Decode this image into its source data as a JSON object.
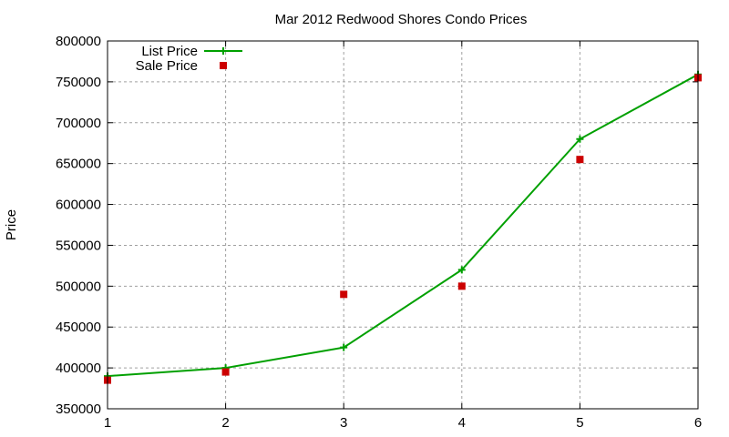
{
  "chart_data": {
    "type": "line",
    "title": "Mar 2012 Redwood Shores Condo Prices",
    "xlabel": "",
    "ylabel": "Price",
    "x": [
      1,
      2,
      3,
      4,
      5,
      6
    ],
    "xlim": [
      1,
      6
    ],
    "ylim": [
      350000,
      800000
    ],
    "xticks": [
      "1",
      "2",
      "3",
      "4",
      "5",
      "6"
    ],
    "yticks": [
      "350000",
      "400000",
      "450000",
      "500000",
      "550000",
      "600000",
      "650000",
      "700000",
      "750000",
      "800000"
    ],
    "grid": true,
    "legend_position": "top-left",
    "series": [
      {
        "name": "List Price",
        "style": "linespoints",
        "color": "#00a000",
        "values": [
          390000,
          400000,
          425000,
          520000,
          680000,
          759000
        ]
      },
      {
        "name": "Sale Price",
        "style": "points",
        "color": "#cc0000",
        "values": [
          385000,
          395000,
          490000,
          500000,
          655000,
          755000
        ]
      }
    ]
  }
}
